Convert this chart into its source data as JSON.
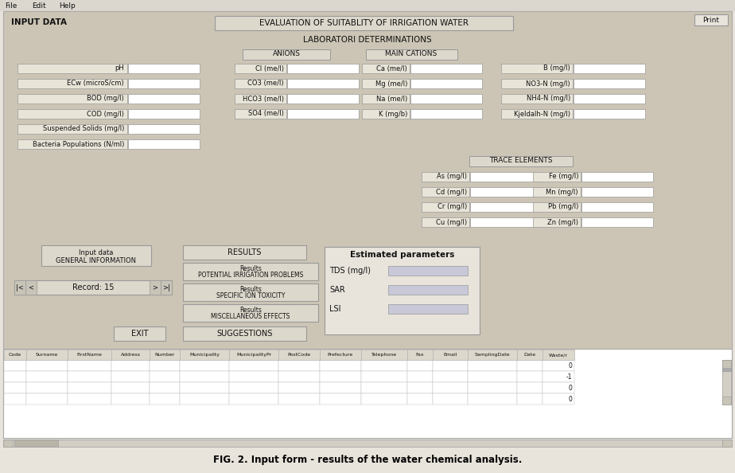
{
  "title": "EVALUATION OF SUITABLITY OF IRRIGATION WATER",
  "subtitle": "LABORATORI DETERMINATIONS",
  "caption": "FIG. 2. Input form - results of the water chemical analysis.",
  "bg_color": "#ccc5b5",
  "field_bg": "#ffffff",
  "field_label_bg": "#e8e4d8",
  "field_bg_alt": "#c8c8d8",
  "menubar": [
    "File",
    "Edit",
    "Help"
  ],
  "input_data_label": "INPUT DATA",
  "print_btn": "Print",
  "anions_label": "ANIONS",
  "main_cations_label": "MAIN CATIONS",
  "trace_elements_label": "TRACE ELEMENTS",
  "left_fields": [
    "pH",
    "ECw (microS/cm)",
    "BOD (mg/l)",
    "COD (mg/l)",
    "Suspended Solids (mg/l)",
    "Bacteria Populations (N/ml)"
  ],
  "anion_fields": [
    "Cl (me/l)",
    "CO3 (me/l)",
    "HCO3 (me/l)",
    "SO4 (me/l)"
  ],
  "main_cation_fields": [
    "Ca (me/l)",
    "Mg (me/l)",
    "Na (me/l)",
    "K (mg/b)"
  ],
  "right_top_fields": [
    "B (mg/l)",
    "NO3-N (mg/l)",
    "NH4-N (mg/l)",
    "Kjeldalh-N (mg/l)"
  ],
  "trace_left_fields": [
    "As (mg/l)",
    "Cd (mg/l)",
    "Cr (mg/l)",
    "Cu (mg/l)"
  ],
  "trace_right_fields": [
    "Fe (mg/l)",
    "Mn (mg/l)",
    "Pb (mg/l)",
    "Zn (mg/l)"
  ],
  "estimated_params_label": "Estimated parameters",
  "estimated_fields": [
    "TDS (mg/l)",
    "SAR",
    "LSI"
  ],
  "btn_general_info_line1": "Input data",
  "btn_general_info_line2": "GENERAL INFORMATION",
  "btn_results": "RESULTS",
  "btn_potential_line1": "Results",
  "btn_potential_line2": "POTENTIAL IRRIGATION PROBLEMS",
  "btn_specific_line1": "Results",
  "btn_specific_line2": "SPECIFIC ION TOXICITY",
  "btn_misc_line1": "Results",
  "btn_misc_line2": "MISCELLANEOUS EFFECTS",
  "btn_suggestions": "SUGGESTIONS",
  "btn_exit": "EXIT",
  "record_label": "Record: 15",
  "table_columns": [
    "Code",
    "Surname",
    "FirstName",
    "Address",
    "Number",
    "Municipality",
    "MunicipalityPr",
    "PostCode",
    "Prefecture",
    "Telephone",
    "Fax",
    "Email",
    "SamplingDate",
    "Date",
    "Waste/r"
  ],
  "table_col_widths": [
    28,
    52,
    55,
    48,
    38,
    62,
    62,
    52,
    52,
    58,
    32,
    44,
    62,
    32,
    40
  ],
  "table_values": [
    "0",
    "-1",
    "0",
    "0"
  ],
  "outer_bg": "#e8e4dc"
}
